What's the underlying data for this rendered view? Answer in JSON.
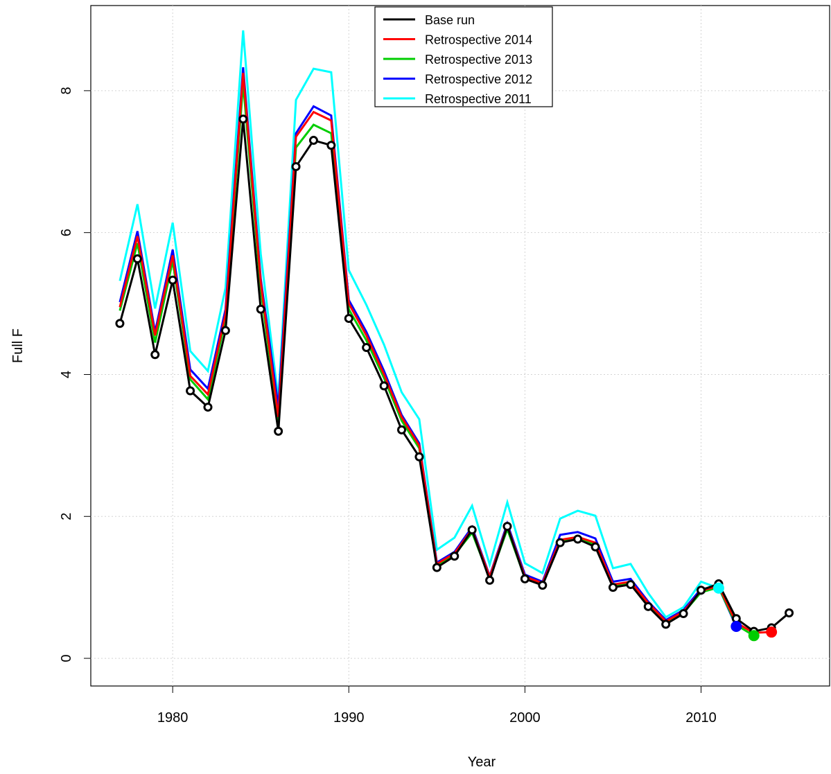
{
  "chart_data": {
    "type": "line",
    "xlabel": "Year",
    "ylabel": "Full F",
    "x": [
      1977,
      1978,
      1979,
      1980,
      1981,
      1982,
      1983,
      1984,
      1985,
      1986,
      1987,
      1988,
      1989,
      1990,
      1991,
      1992,
      1993,
      1994,
      1995,
      1996,
      1997,
      1998,
      1999,
      2000,
      2001,
      2002,
      2003,
      2004,
      2005,
      2006,
      2007,
      2008,
      2009,
      2010,
      2011,
      2012,
      2013,
      2014,
      2015
    ],
    "xlim": [
      1975.35,
      2017.3
    ],
    "xticks": [
      1980,
      1990,
      2000,
      2010
    ],
    "ylim": [
      -0.39,
      9.2
    ],
    "yticks": [
      0,
      2,
      4,
      6,
      8
    ],
    "grid": true,
    "legend": "top",
    "series": [
      {
        "name": "Base run",
        "color": "#000000",
        "values": [
          4.72,
          5.63,
          4.28,
          5.33,
          3.77,
          3.54,
          4.62,
          7.6,
          4.92,
          3.2,
          6.93,
          7.3,
          7.23,
          4.79,
          4.38,
          3.84,
          3.22,
          2.84,
          1.28,
          1.44,
          1.81,
          1.1,
          1.86,
          1.12,
          1.03,
          1.63,
          1.68,
          1.57,
          1.0,
          1.04,
          0.73,
          0.48,
          0.63,
          0.96,
          1.05,
          0.56,
          0.38,
          0.43,
          0.64
        ]
      },
      {
        "name": "Retrospective 2014",
        "color": "#ff0000",
        "values": [
          4.95,
          5.95,
          4.55,
          5.68,
          3.98,
          3.72,
          4.85,
          8.25,
          5.3,
          3.4,
          7.35,
          7.7,
          7.58,
          5.0,
          4.55,
          4.0,
          3.4,
          3.0,
          1.33,
          1.48,
          1.82,
          1.15,
          1.87,
          1.15,
          1.06,
          1.67,
          1.71,
          1.63,
          1.04,
          1.08,
          0.78,
          0.52,
          0.66,
          0.95,
          1.02,
          0.5,
          0.36,
          0.37,
          null
        ]
      },
      {
        "name": "Retrospective 2013",
        "color": "#00cd00",
        "values": [
          4.9,
          5.85,
          4.45,
          5.6,
          3.93,
          3.65,
          4.78,
          8.1,
          5.2,
          3.32,
          7.2,
          7.52,
          7.4,
          4.92,
          4.48,
          3.95,
          3.35,
          2.96,
          1.31,
          1.46,
          1.77,
          1.13,
          1.82,
          1.13,
          1.04,
          1.65,
          1.69,
          1.6,
          1.02,
          1.06,
          0.76,
          0.5,
          0.64,
          0.93,
          1.0,
          0.47,
          0.32,
          null,
          null
        ]
      },
      {
        "name": "Retrospective 2012",
        "color": "#0000ff",
        "values": [
          5.02,
          6.02,
          4.6,
          5.76,
          4.07,
          3.8,
          4.92,
          8.33,
          5.35,
          3.55,
          7.4,
          7.78,
          7.65,
          5.05,
          4.6,
          4.05,
          3.43,
          3.03,
          1.35,
          1.5,
          1.85,
          1.16,
          1.9,
          1.18,
          1.08,
          1.74,
          1.78,
          1.69,
          1.08,
          1.12,
          0.8,
          0.54,
          0.68,
          0.98,
          1.0,
          0.45,
          null,
          null,
          null
        ]
      },
      {
        "name": "Retrospective 2011",
        "color": "#00ffff",
        "values": [
          5.32,
          6.4,
          4.93,
          6.14,
          4.33,
          4.05,
          5.22,
          8.85,
          5.7,
          3.65,
          7.87,
          8.31,
          8.26,
          5.47,
          4.98,
          4.42,
          3.75,
          3.37,
          1.53,
          1.7,
          2.15,
          1.32,
          2.2,
          1.34,
          1.2,
          1.97,
          2.08,
          2.01,
          1.27,
          1.33,
          0.92,
          0.58,
          0.72,
          1.08,
          0.99,
          null,
          null,
          null,
          null
        ]
      }
    ]
  }
}
